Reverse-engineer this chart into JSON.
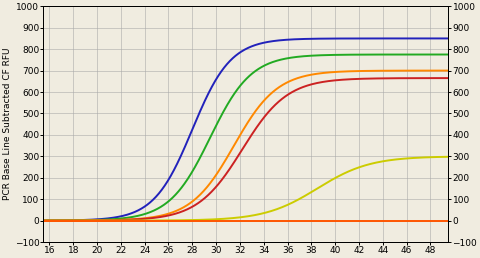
{
  "xlim": [
    15.5,
    49.5
  ],
  "ylim": [
    -100,
    1000
  ],
  "xticks": [
    16,
    18,
    20,
    22,
    24,
    26,
    28,
    30,
    32,
    34,
    36,
    38,
    40,
    42,
    44,
    46,
    48
  ],
  "yticks": [
    -100,
    0,
    100,
    200,
    300,
    400,
    500,
    600,
    700,
    800,
    900,
    1000
  ],
  "ylabel": "PCR Base Line Subtracted CF RFU",
  "background_color": "#f0ece0",
  "grid_color": "#aaaaaa",
  "curves": [
    {
      "color": "#2222bb",
      "label": "blue",
      "plateau": 850,
      "midpoint": 28.0,
      "steepness": 0.62
    },
    {
      "color": "#22aa22",
      "label": "green",
      "plateau": 775,
      "midpoint": 29.5,
      "steepness": 0.58
    },
    {
      "color": "#ff8800",
      "label": "orange",
      "plateau": 700,
      "midpoint": 31.5,
      "steepness": 0.55
    },
    {
      "color": "#cc2222",
      "label": "red",
      "plateau": 665,
      "midpoint": 32.2,
      "steepness": 0.53
    },
    {
      "color": "#cccc00",
      "label": "yellow",
      "plateau": 300,
      "midpoint": 38.5,
      "steepness": 0.45
    },
    {
      "color": "#ff5500",
      "label": "flat_orange",
      "plateau": 22,
      "midpoint": 80,
      "steepness": 0.4
    }
  ],
  "figsize": [
    4.8,
    2.58
  ],
  "dpi": 100,
  "tick_fontsize": 6.5,
  "ylabel_fontsize": 6.5,
  "linewidth": 1.4
}
